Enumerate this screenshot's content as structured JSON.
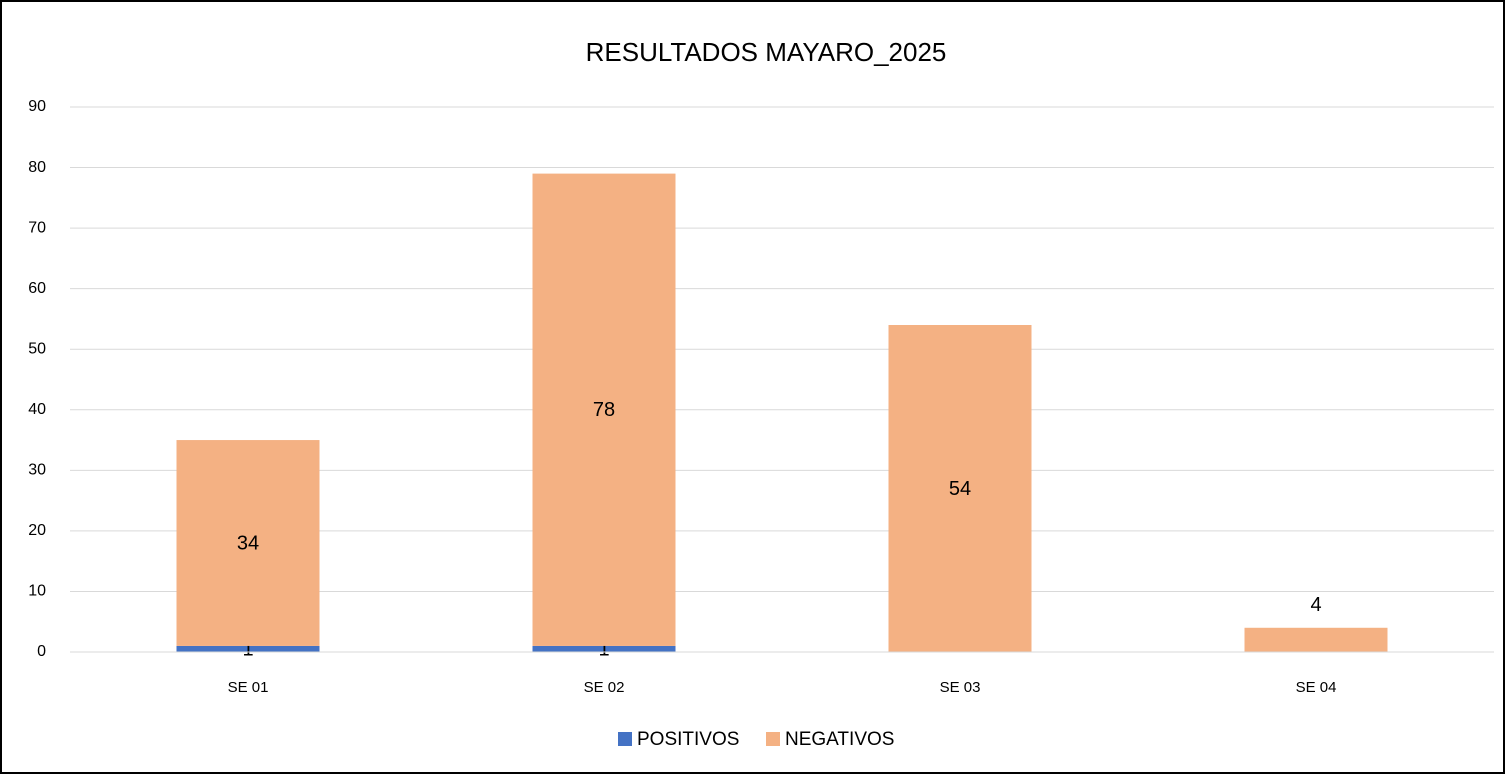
{
  "chart_data": {
    "type": "stacked_bar",
    "title": "RESULTADOS MAYARO_2025",
    "categories": [
      "SE 01",
      "SE 02",
      "SE 03",
      "SE 04"
    ],
    "series": [
      {
        "name": "POSITIVOS",
        "color": "#4472c4",
        "values": [
          1,
          1,
          null,
          null
        ]
      },
      {
        "name": "NEGATIVOS",
        "color": "#f4b183",
        "values": [
          34,
          78,
          54,
          4
        ]
      }
    ],
    "ylim": [
      0,
      90
    ],
    "yticks": [
      0,
      10,
      20,
      30,
      40,
      50,
      60,
      70,
      80,
      90
    ],
    "grid": true,
    "legend": "bottom"
  }
}
